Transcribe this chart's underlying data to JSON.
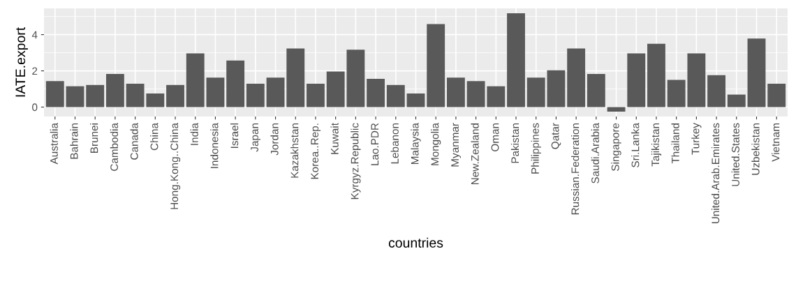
{
  "chart_data": {
    "type": "bar",
    "xlabel": "countries",
    "ylabel": "IATE.export",
    "categories": [
      "Australia",
      "Bahrain",
      "Brunei",
      "Cambodia",
      "Canada",
      "China",
      "Hong.Kong..China",
      "India",
      "Indonesia",
      "Israel",
      "Japan",
      "Jordan",
      "Kazakhstan",
      "Korea..Rep.",
      "Kuwait",
      "Kyrgyz.Republic",
      "Lao.PDR",
      "Lebanon",
      "Malaysia",
      "Mongolia",
      "Myanmar",
      "New.Zealand",
      "Oman",
      "Pakistan",
      "Philippines",
      "Qatar",
      "Russian.Federation",
      "Saudi.Arabia",
      "Singapore",
      "Sri.Lanka",
      "Tajikistan",
      "Thailand",
      "Turkey",
      "United.Arab.Emirates",
      "United.States",
      "Uzbekistan",
      "Vietnam"
    ],
    "values": [
      1.43,
      1.15,
      1.22,
      1.83,
      1.29,
      0.75,
      1.22,
      2.97,
      1.63,
      2.57,
      1.29,
      1.63,
      3.24,
      1.29,
      1.96,
      3.17,
      1.56,
      1.22,
      0.75,
      4.58,
      1.63,
      1.43,
      1.15,
      5.18,
      1.63,
      2.03,
      3.24,
      1.83,
      -0.25,
      2.97,
      3.5,
      1.5,
      2.97,
      1.76,
      0.69,
      3.78,
      1.29
    ],
    "color": "#595959",
    "ylim": [
      -0.52,
      5.45
    ],
    "yticks": [
      0,
      2,
      4
    ],
    "grid": true
  }
}
